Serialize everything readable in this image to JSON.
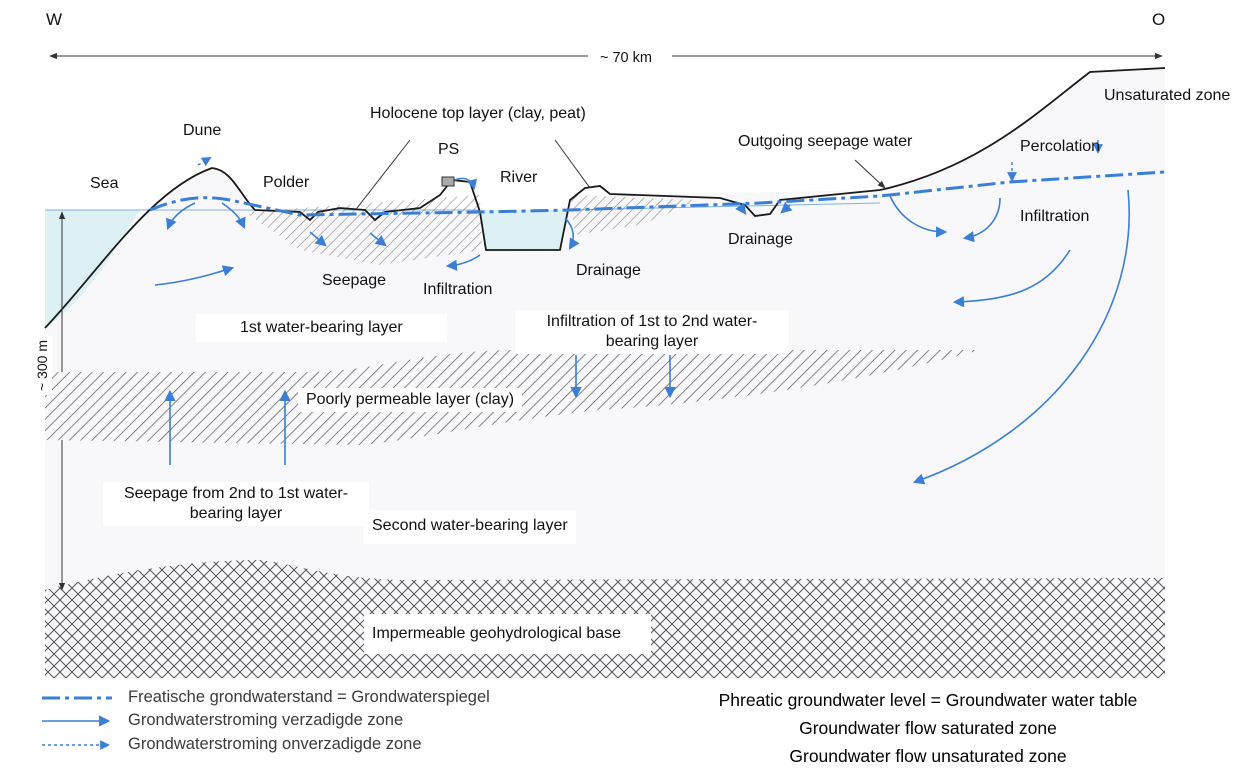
{
  "compass": {
    "west": "W",
    "east": "O"
  },
  "scale": {
    "width": "~ 70 km",
    "depth": "~ 300 m"
  },
  "labels": {
    "sea": "Sea",
    "dune": "Dune",
    "polder": "Polder",
    "holocene": "Holocene top layer (clay, peat)",
    "ps": "PS",
    "river": "River",
    "outgoing_seepage": "Outgoing seepage water",
    "percolation": "Percolation",
    "unsaturated_zone": "Unsaturated zone",
    "infiltration_east": "Infiltration",
    "drainage_east": "Drainage",
    "drainage_river": "Drainage",
    "seepage": "Seepage",
    "infiltration_river": "Infiltration",
    "layer1": "1st water-bearing layer",
    "infiltration_1_2": "Infiltration of 1st to 2nd water-bearing layer",
    "poorly_permeable": "Poorly permeable layer (clay)",
    "seepage_2_1": "Seepage from 2nd to 1st water-bearing layer",
    "layer2": "Second water-bearing layer",
    "base": "Impermeable geohydrological base"
  },
  "legend": {
    "dutch": [
      "Freatische grondwaterstand = Grondwaterspiegel",
      "Grondwaterstroming verzadigde zone",
      "Grondwaterstroming onverzadigde zone"
    ],
    "english": [
      "Phreatic groundwater level  = Groundwater water table",
      "Groundwater flow saturated zone",
      "Groundwater flow unsaturated zone"
    ]
  },
  "colors": {
    "water_table": "#3a7fd5",
    "flow_arrow": "#3a7fd5",
    "sea_water": "#ddf1f5",
    "ground": "#f8f8fb",
    "outline": "#1a1a1a",
    "hatch": "#555555"
  }
}
